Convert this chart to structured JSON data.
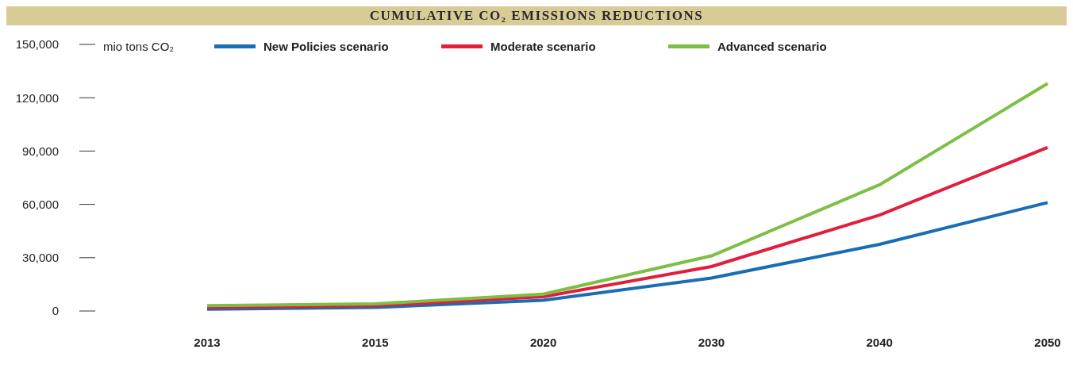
{
  "chart_data": {
    "type": "line",
    "title": "CUMULATIVE CO₂ EMISSIONS REDUCTIONS",
    "ylabel": "mio tons CO₂",
    "categories": [
      "2013",
      "2015",
      "2020",
      "2030",
      "2040",
      "2050"
    ],
    "series": [
      {
        "name": "New Policies scenario",
        "color": "#1a6db3",
        "values": [
          1000,
          2000,
          6000,
          18500,
          37500,
          61000
        ]
      },
      {
        "name": "Moderate scenario",
        "color": "#e31e3c",
        "values": [
          2000,
          3000,
          8000,
          25000,
          54000,
          92000
        ]
      },
      {
        "name": "Advanced scenario",
        "color": "#7dbf45",
        "values": [
          3000,
          4000,
          9500,
          31000,
          71000,
          128000
        ]
      }
    ],
    "ylim": [
      0,
      150000
    ],
    "yticks": [
      0,
      {
        "value": 30000,
        "label": "30,000"
      },
      {
        "value": 60000,
        "label": "60,000"
      },
      {
        "value": 90000,
        "label": "90,000"
      },
      {
        "value": 120000,
        "label": "120,000"
      },
      {
        "value": 150000,
        "label": "150,000"
      }
    ],
    "legend": "top",
    "marker": "none",
    "line_style": "solid"
  }
}
